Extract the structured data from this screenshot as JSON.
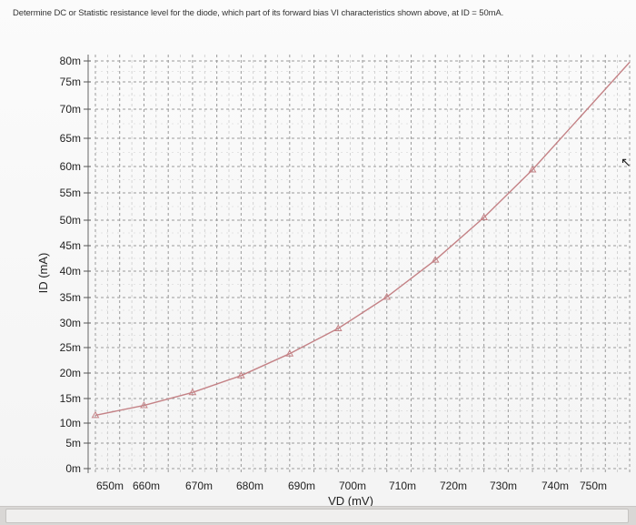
{
  "question": {
    "text": "Determine DC or Statistic resistance level for the diode, which part of its forward bias VI characteristics shown above, at ID = 50mA."
  },
  "chart_data": {
    "type": "line",
    "title": "",
    "xlabel": "VD (mV)",
    "ylabel": "ID (mA)",
    "x_ticks": [
      {
        "label": "650m",
        "value": 650
      },
      {
        "label": "660m",
        "value": 660
      },
      {
        "label": "670m",
        "value": 670
      },
      {
        "label": "680m",
        "value": 680
      },
      {
        "label": "690m",
        "value": 690
      },
      {
        "label": "700m",
        "value": 700
      },
      {
        "label": "710m",
        "value": 710
      },
      {
        "label": "720m",
        "value": 720
      },
      {
        "label": "730m",
        "value": 730
      },
      {
        "label": "740m",
        "value": 740
      },
      {
        "label": "750m",
        "value": 750
      }
    ],
    "y_ticks": [
      {
        "label": "0m",
        "value": 0
      },
      {
        "label": "5m",
        "value": 5
      },
      {
        "label": "10m",
        "value": 10
      },
      {
        "label": "15m",
        "value": 15
      },
      {
        "label": "20m",
        "value": 20
      },
      {
        "label": "25m",
        "value": 25
      },
      {
        "label": "30m",
        "value": 30
      },
      {
        "label": "35m",
        "value": 35
      },
      {
        "label": "40m",
        "value": 40
      },
      {
        "label": "45m",
        "value": 45
      },
      {
        "label": "50m",
        "value": 50
      },
      {
        "label": "55m",
        "value": 55
      },
      {
        "label": "60m",
        "value": 60
      },
      {
        "label": "65m",
        "value": 65
      },
      {
        "label": "70m",
        "value": 70
      },
      {
        "label": "75m",
        "value": 75
      },
      {
        "label": "80m",
        "value": 80
      }
    ],
    "xlim": [
      645,
      755
    ],
    "ylim": [
      0,
      82
    ],
    "grid": true,
    "series": [
      {
        "color": "#c48286",
        "marker": "triangle",
        "x": [
          645,
          655,
          665,
          675,
          685,
          695,
          705,
          715,
          725,
          735,
          755
        ],
        "y": [
          11.6,
          13.6,
          16.2,
          19.5,
          23.8,
          28.9,
          35.1,
          42.2,
          50.5,
          59.4,
          79.7
        ],
        "markers_x": [
          645,
          655,
          665,
          675,
          685,
          695,
          705,
          715,
          725,
          735
        ]
      }
    ]
  }
}
